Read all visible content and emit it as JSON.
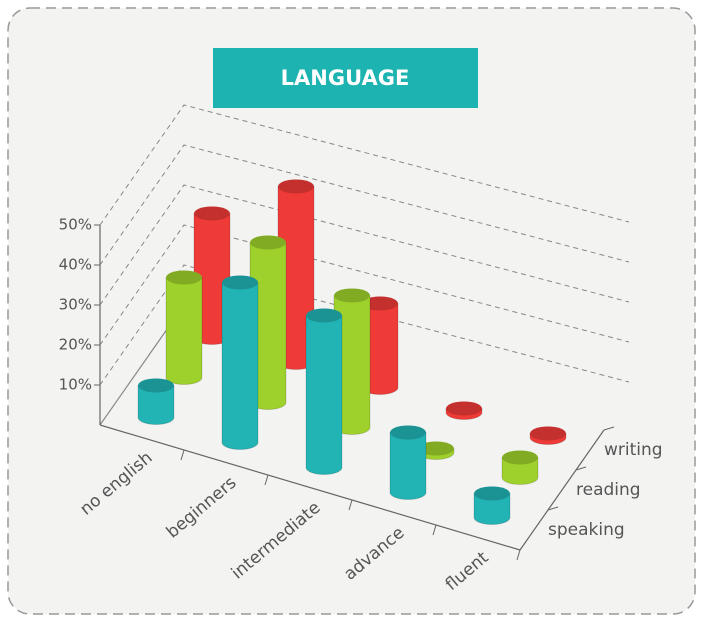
{
  "chart_data": {
    "type": "bar3d",
    "title": "LANGUAGE",
    "categories": [
      "no english",
      "beginners",
      "intermediate",
      "advance",
      "fluent"
    ],
    "series": [
      {
        "name": "speaking",
        "color": "#22b3b4",
        "values": [
          8,
          40,
          38,
          15,
          6
        ]
      },
      {
        "name": "reading",
        "color": "#9fd12c",
        "values": [
          25,
          40,
          33,
          1,
          5
        ]
      },
      {
        "name": "writing",
        "color": "#ee3b37",
        "values": [
          31,
          44,
          21,
          1,
          1
        ]
      }
    ],
    "ylim": [
      0,
      50
    ],
    "yticks": [
      {
        "value": 10,
        "label": "10%"
      },
      {
        "value": 20,
        "label": "20%"
      },
      {
        "value": 30,
        "label": "30%"
      },
      {
        "value": 40,
        "label": "40%"
      },
      {
        "value": 50,
        "label": "50%"
      }
    ],
    "grid": true
  }
}
